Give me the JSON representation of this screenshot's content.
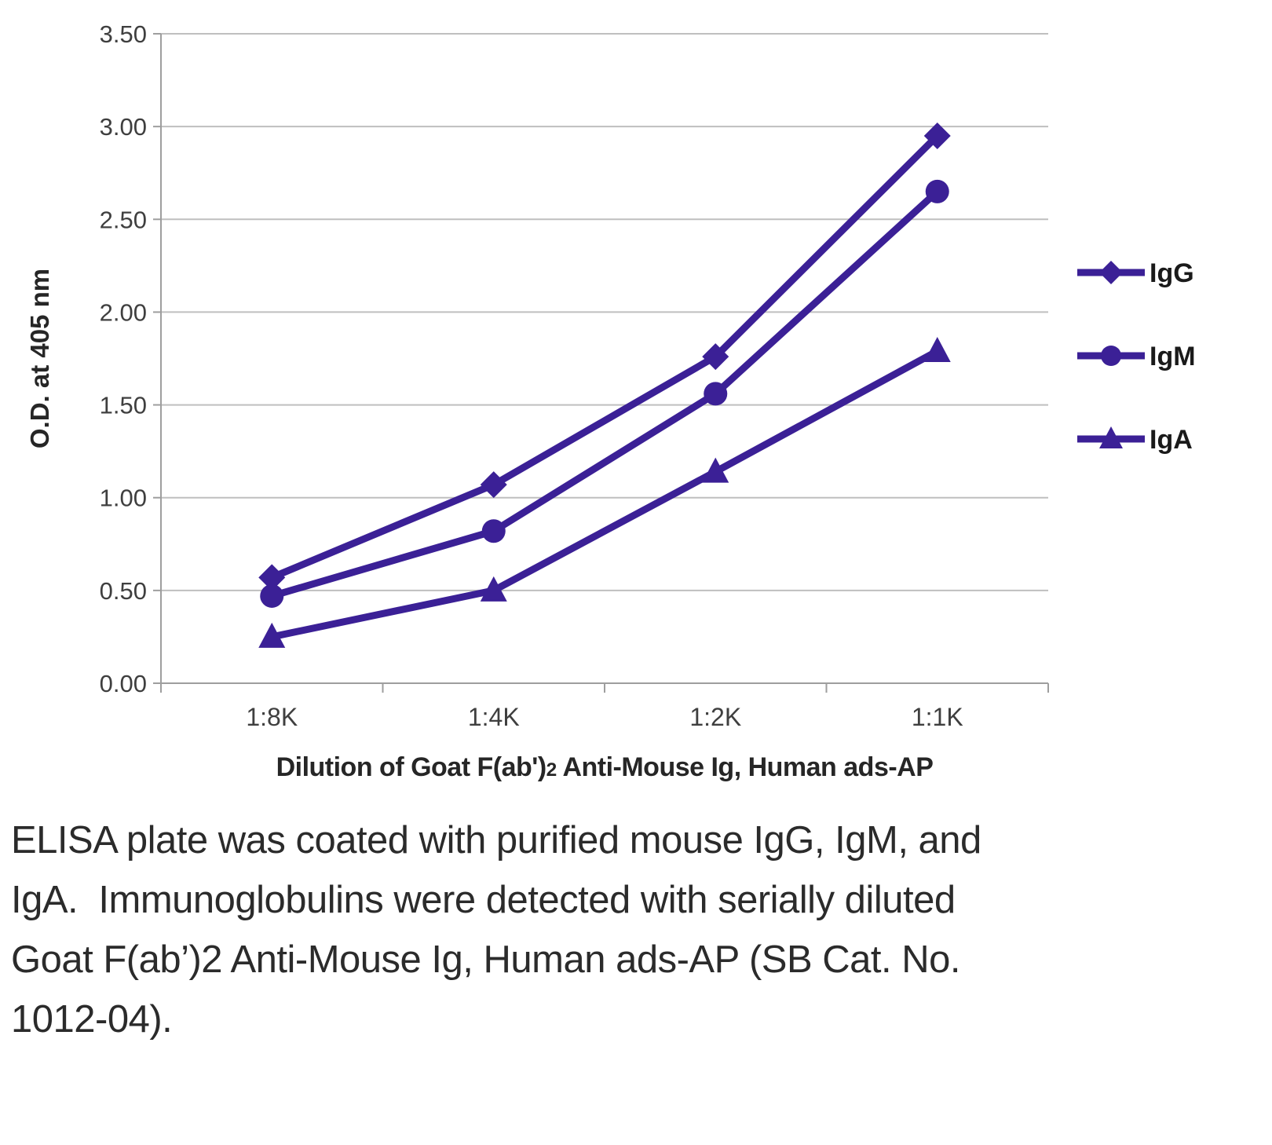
{
  "figure": {
    "x_axis_title": {
      "prefix": "Dilution of Goat F(ab')",
      "sub": "2",
      "suffix": " Anti-Mouse Ig, Human ads-AP"
    },
    "caption": "ELISA plate was coated with purified mouse IgG, IgM, and IgA.  Immunoglobulins were detected with serially diluted Goat F(ab’)2 Anti-Mouse Ig, Human ads-AP (SB Cat. No. 1012-04)."
  },
  "chart_data": {
    "type": "line",
    "categories": [
      "1:8K",
      "1:4K",
      "1:2K",
      "1:1K"
    ],
    "series": [
      {
        "name": "IgG",
        "marker": "diamond",
        "values": [
          0.57,
          1.07,
          1.76,
          2.95
        ]
      },
      {
        "name": "IgM",
        "marker": "circle",
        "values": [
          0.47,
          0.82,
          1.56,
          2.65
        ]
      },
      {
        "name": "IgA",
        "marker": "triangle",
        "values": [
          0.25,
          0.5,
          1.14,
          1.79
        ]
      }
    ],
    "title": "",
    "xlabel": "Dilution of Goat F(ab')2 Anti-Mouse Ig, Human ads-AP",
    "ylabel": "O.D. at 405 nm",
    "ylim": [
      0,
      3.5
    ],
    "ytick_step": 0.5,
    "ytick_decimals": 2,
    "grid": true,
    "legend_position": "right",
    "line_color": "#3b2096",
    "grid_color": "#bfbfbf",
    "axis_color": "#9e9e9e",
    "axis_text_color": "#3f3f3f",
    "legend_text_color": "#1a1a1a"
  }
}
